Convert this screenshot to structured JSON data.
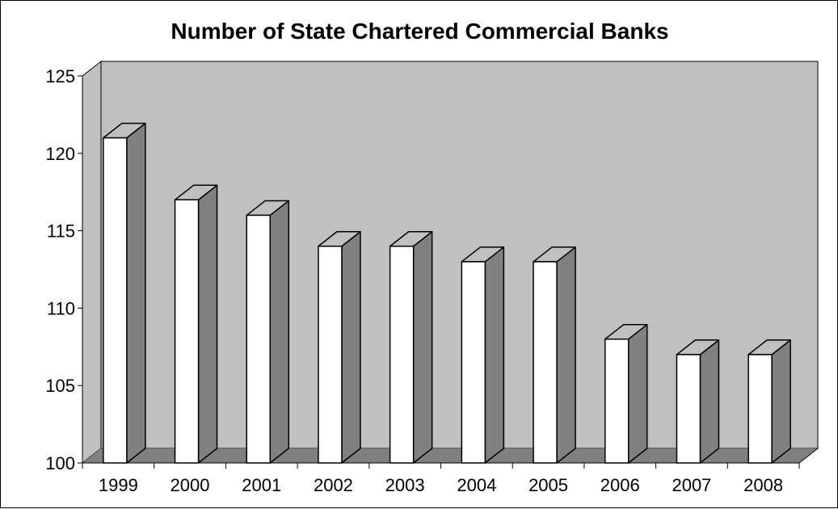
{
  "chart_data": {
    "type": "bar",
    "title": "Number of State Chartered Commercial Banks",
    "categories": [
      "1999",
      "2000",
      "2001",
      "2002",
      "2003",
      "2004",
      "2005",
      "2006",
      "2007",
      "2008"
    ],
    "values": [
      121,
      117,
      116,
      114,
      114,
      113,
      113,
      108,
      107,
      107
    ],
    "ylim": [
      100,
      125
    ],
    "yticks": [
      100,
      105,
      110,
      115,
      120,
      125
    ],
    "grid": false,
    "style": "3d",
    "colors": {
      "bar_front": "#ffffff",
      "bar_top": "#c0c0c0",
      "bar_side": "#808080",
      "back_wall": "#c0c0c0",
      "floor": "#808080",
      "outline": "#000000"
    }
  }
}
